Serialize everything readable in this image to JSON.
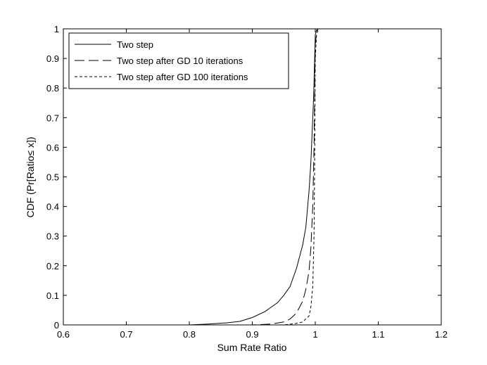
{
  "chart_data": {
    "type": "line",
    "title": "",
    "xlabel": "Sum Rate Ratio",
    "ylabel": "CDF (Pr[Ratio≤ x])",
    "xlim": [
      0.6,
      1.2
    ],
    "ylim": [
      0,
      1
    ],
    "xticks": [
      "0.6",
      "0.7",
      "0.8",
      "0.9",
      "1",
      "1.1",
      "1.2"
    ],
    "yticks": [
      "0",
      "0.1",
      "0.2",
      "0.3",
      "0.4",
      "0.5",
      "0.6",
      "0.7",
      "0.8",
      "0.9",
      "1"
    ],
    "grid": false,
    "legend_position": "top-left",
    "series": [
      {
        "name": "Two step",
        "style": "solid",
        "color": "#000000",
        "x": [
          0.6,
          0.8,
          0.83,
          0.86,
          0.88,
          0.9,
          0.92,
          0.94,
          0.95,
          0.96,
          0.97,
          0.98,
          0.985,
          0.99,
          0.993,
          0.995,
          0.997,
          0.998,
          0.999,
          1.0,
          1.002,
          1.005,
          1.01,
          1.2
        ],
        "y": [
          0,
          0,
          0.003,
          0.007,
          0.012,
          0.025,
          0.045,
          0.075,
          0.1,
          0.13,
          0.19,
          0.27,
          0.33,
          0.45,
          0.55,
          0.65,
          0.75,
          0.82,
          0.9,
          0.98,
          0.995,
          1.0,
          1.0,
          1.0
        ]
      },
      {
        "name": "Two step after GD 10 iterations",
        "style": "dashed",
        "color": "#000000",
        "x": [
          0.6,
          0.9,
          0.93,
          0.95,
          0.96,
          0.97,
          0.98,
          0.985,
          0.99,
          0.993,
          0.996,
          0.998,
          0.999,
          1.0,
          1.003,
          1.01,
          1.2
        ],
        "y": [
          0,
          0,
          0.003,
          0.01,
          0.02,
          0.04,
          0.08,
          0.12,
          0.18,
          0.26,
          0.4,
          0.6,
          0.78,
          0.95,
          1.0,
          1.0,
          1.0
        ]
      },
      {
        "name": "Two step after GD 100 iterations",
        "style": "dotted",
        "color": "#000000",
        "x": [
          0.6,
          0.95,
          0.97,
          0.98,
          0.99,
          0.993,
          0.996,
          0.998,
          0.999,
          1.0,
          1.002,
          1.005,
          1.01,
          1.2
        ],
        "y": [
          0,
          0,
          0.005,
          0.01,
          0.03,
          0.06,
          0.13,
          0.3,
          0.55,
          0.9,
          0.98,
          1.0,
          1.0,
          1.0
        ]
      }
    ]
  }
}
